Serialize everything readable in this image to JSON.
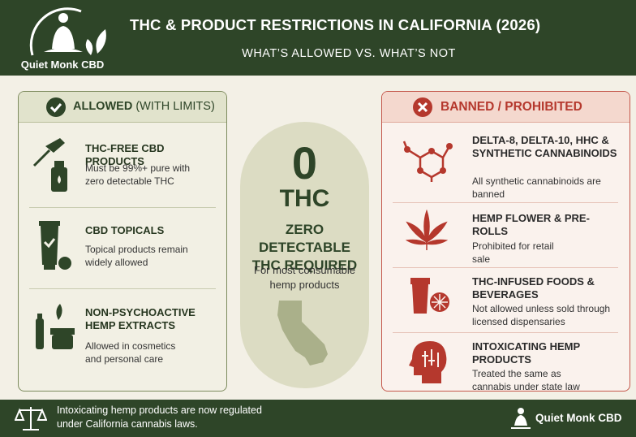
{
  "header": {
    "brand": "Quiet Monk CBD",
    "title": "THC & PRODUCT RESTRICTIONS IN CALIFORNIA (2026)",
    "subtitle": "WHAT’S ALLOWED VS. WHAT’S NOT"
  },
  "allowed": {
    "heading": "ALLOWED",
    "heading_note": "(WITH LIMITS)",
    "items": [
      {
        "title": "THC-FREE CBD PRODUCTS",
        "description": "Must be 99%+ pure with zero detectable THC"
      },
      {
        "title": "CBD TOPICALS",
        "description": "Topical products remain widely allowed"
      },
      {
        "title": "NON-PSYCHOACTIVE HEMP EXTRACTS",
        "description": "Allowed in cosmetics and personal care"
      }
    ]
  },
  "center": {
    "number": "0",
    "unit": "THC",
    "heading": "ZERO DETECTABLE THC REQUIRED",
    "note": "For most consumable hemp products"
  },
  "banned": {
    "heading": "BANNED / PROHIBITED",
    "items": [
      {
        "title": "DELTA-8, DELTA-10, HHC & SYNTHETIC CANNABINOIDS",
        "description": "All synthetic cannabinoids are banned"
      },
      {
        "title": "HEMP FLOWER & PRE-ROLLS",
        "description": "Prohibited for retail sale"
      },
      {
        "title": "THC-INFUSED FOODS & BEVERAGES",
        "description": "Not allowed unless sold through licensed dispensaries"
      },
      {
        "title": "INTOXICATING HEMP PRODUCTS",
        "description": "Treated the same as cannabis under state law"
      }
    ]
  },
  "footer": {
    "note": "Intoxicating hemp products are now regulated under California cannabis laws.",
    "brand": "Quiet Monk CBD"
  }
}
